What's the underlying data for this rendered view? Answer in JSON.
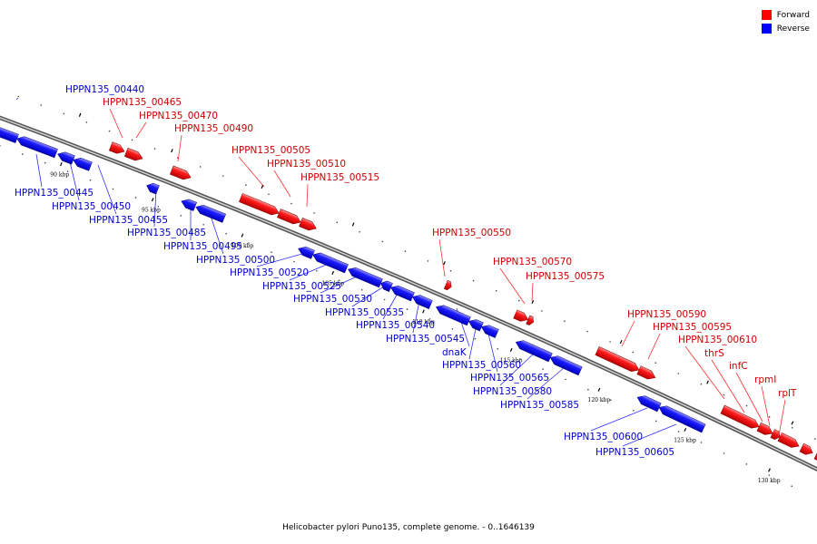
{
  "legend": {
    "forward_label": "Forward",
    "reverse_label": "Reverse",
    "forward_color": "#ff0000",
    "reverse_color": "#0000ff"
  },
  "caption": "Helicobacter pylori Puno135, complete genome. - 0..1646139",
  "ticks": [
    "90 kbp",
    "95 kbp",
    "100 kbp",
    "105 kbp",
    "110 kbp",
    "115 kbp",
    "120 kbp",
    "125 kbp",
    "130 kbp"
  ],
  "forward_genes": [
    "HPPN135_00465",
    "HPPN135_00470",
    "HPPN135_00490",
    "HPPN135_00505",
    "HPPN135_00510",
    "HPPN135_00515",
    "HPPN135_00550",
    "HPPN135_00570",
    "HPPN135_00575",
    "HPPN135_00590",
    "HPPN135_00595",
    "HPPN135_00610",
    "thrS",
    "infC",
    "rpmI",
    "rplT"
  ],
  "reverse_genes": [
    "HPPN135_00440",
    "HPPN135_00445",
    "HPPN135_00450",
    "HPPN135_00455",
    "HPPN135_00485",
    "HPPN135_00495",
    "HPPN135_00500",
    "HPPN135_00520",
    "HPPN135_00525",
    "HPPN135_00530",
    "HPPN135_00535",
    "HPPN135_00540",
    "HPPN135_00545",
    "dnaK",
    "HPPN135_00560",
    "HPPN135_00565",
    "HPPN135_00580",
    "HPPN135_00585",
    "HPPN135_00600",
    "HPPN135_00605"
  ]
}
